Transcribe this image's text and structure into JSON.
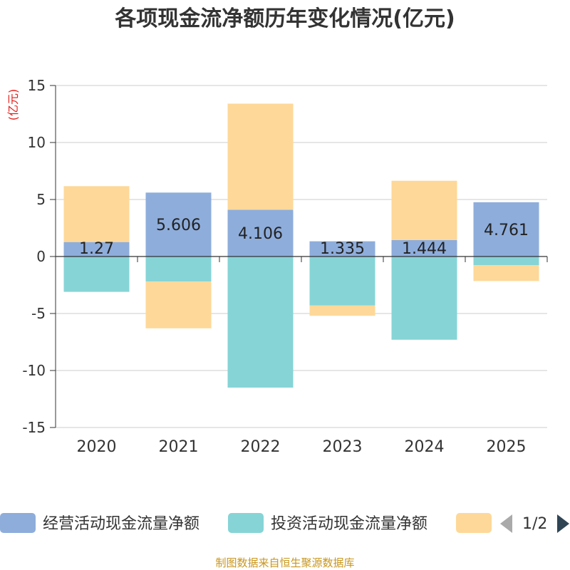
{
  "chart_data": {
    "type": "bar",
    "stacked": true,
    "title": "各项现金流净额历年变化情况(亿元)",
    "ylabel": "(亿元)",
    "categories": [
      "2020",
      "2021",
      "2022",
      "2023",
      "2024",
      "2025"
    ],
    "ylim": [
      -15,
      15
    ],
    "yticks": [
      15,
      10,
      5,
      0,
      -5,
      -10,
      -15
    ],
    "series": [
      {
        "name": "经营活动现金流量净额",
        "color": "#8eaddb",
        "values": [
          1.27,
          5.606,
          4.106,
          1.335,
          1.444,
          4.761
        ],
        "labels": [
          "1.27",
          "5.606",
          "4.106",
          "1.335",
          "1.444",
          "4.761"
        ]
      },
      {
        "name": "投资活动现金流量净额",
        "color": "#86d4d6",
        "values": [
          -3.1,
          -2.2,
          -11.5,
          -4.3,
          -7.3,
          -0.75
        ]
      },
      {
        "name": "",
        "color": "#fed899",
        "values": [
          4.9,
          -4.1,
          9.3,
          -0.9,
          5.2,
          -1.4
        ]
      }
    ],
    "legend": {
      "position": "bottom",
      "page": "1/2"
    },
    "grid": true
  },
  "source": "制图数据来自恒生聚源数据库"
}
